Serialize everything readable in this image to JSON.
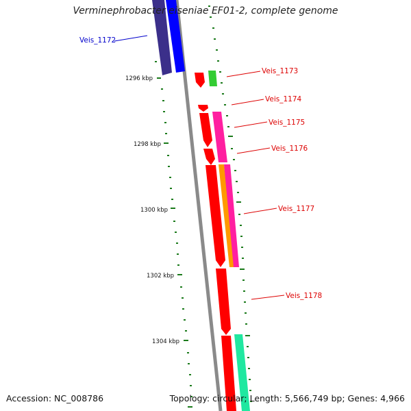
{
  "title": "Verminephrobacter eiseniae EF01-2, complete genome",
  "accession": "Accession: NC_008786",
  "summary": "Topology: circular; Length: 5,566,749 bp; Genes: 4,966",
  "ticks": [
    "1296 kbp",
    "1298 kbp",
    "1300 kbp",
    "1302 kbp",
    "1304 kbp"
  ],
  "genes": [
    {
      "name": "Veis_1172",
      "color": "#0000cc"
    },
    {
      "name": "Veis_1173",
      "color": "#dd0000"
    },
    {
      "name": "Veis_1174",
      "color": "#dd0000"
    },
    {
      "name": "Veis_1175",
      "color": "#dd0000"
    },
    {
      "name": "Veis_1176",
      "color": "#dd0000"
    },
    {
      "name": "Veis_1177",
      "color": "#dd0000"
    },
    {
      "name": "Veis_1178",
      "color": "#dd0000"
    }
  ],
  "colors": {
    "backbone": "#888888",
    "tick": "#1a7a1a",
    "blue": "#0000ff",
    "navy": "#3b2f8a",
    "red": "#ff0000",
    "green": "#33cc33",
    "magenta": "#ff1fa0",
    "orange": "#ff9900",
    "teal": "#20e8a0"
  }
}
